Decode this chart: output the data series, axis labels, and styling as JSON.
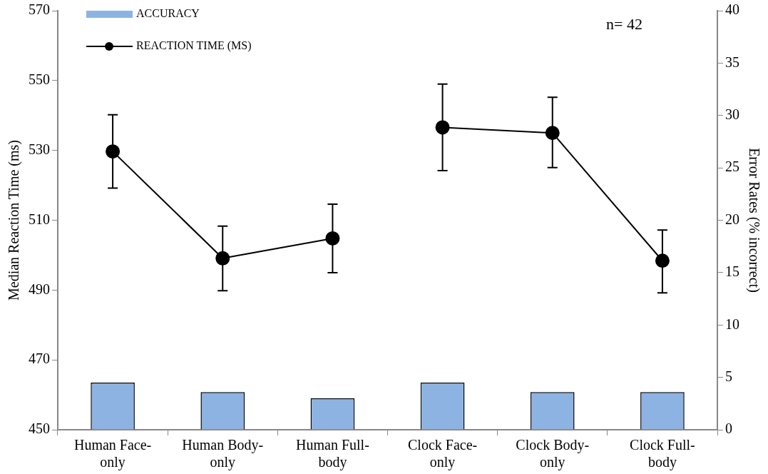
{
  "chart_data": {
    "type": "bar",
    "ylabel": "Median Reaction Time (ms)",
    "y2label": "Error Rates (% incorrect)",
    "categories": [
      "Human Face-only",
      "Human Body-only",
      "Human Full-body",
      "Clock Face-only",
      "Clock Body-only",
      "Clock Full-body"
    ],
    "series": [
      {
        "name": "ACCURACY",
        "axis": "y2",
        "color": "#8db3e2",
        "values": [
          4.5,
          3.6,
          3.0,
          4.5,
          3.6,
          3.6
        ]
      },
      {
        "name": "REACTION TIME (MS)",
        "type": "line",
        "axis": "y",
        "color": "#000000",
        "marker": "circle",
        "values": [
          529.7,
          499.1,
          504.8,
          null,
          null,
          null
        ],
        "errors": [
          [
            519.2,
            540.2
          ],
          [
            489.8,
            508.3
          ],
          [
            495.0,
            514.6
          ],
          null,
          null,
          null
        ]
      },
      {
        "type": "line",
        "axis": "y",
        "color": "#000000",
        "marker": "circle",
        "values": [
          null,
          null,
          null,
          536.6,
          535.0,
          498.4
        ],
        "errors": [
          null,
          null,
          null,
          [
            524.2,
            549.0
          ],
          [
            525.1,
            545.2
          ],
          [
            489.2,
            507.2
          ]
        ]
      }
    ],
    "ylim": [
      450,
      570
    ],
    "yticks": [
      450,
      470,
      490,
      510,
      530,
      550,
      570
    ],
    "y2lim": [
      0,
      40
    ],
    "y2ticks": [
      0,
      5,
      10,
      15,
      20,
      25,
      30,
      35,
      40
    ],
    "grid": false,
    "legend": "top left",
    "annotations": [
      "n= 42"
    ]
  }
}
